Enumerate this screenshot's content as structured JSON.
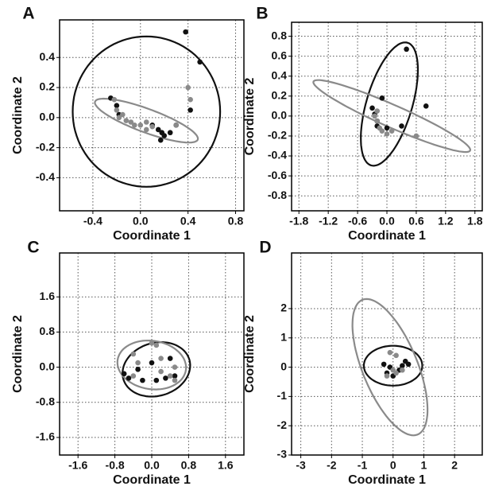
{
  "chart_data": [
    {
      "type": "scatter",
      "panel": "A",
      "x_label": "Coordinate 1",
      "y_label": "Coordinate 2",
      "grid": true,
      "xlim": [
        -0.68,
        0.87
      ],
      "ylim": [
        -0.62,
        0.65
      ],
      "xticks": [
        -0.4,
        {
          "value": 0,
          "label": "0.0"
        },
        0.4,
        0.8
      ],
      "yticks": [
        -0.4,
        -0.2,
        {
          "value": 0,
          "label": "0.0"
        },
        0.2,
        0.4
      ],
      "series": [
        {
          "color": "#111111",
          "x": [
            -0.25,
            -0.2,
            -0.18,
            0.15,
            0.18,
            0.2,
            0.17,
            0.3,
            0.38,
            0.5,
            0.42,
            0.1,
            0.25
          ],
          "y": [
            0.13,
            0.08,
            0.02,
            -0.08,
            -0.1,
            -0.12,
            -0.15,
            -0.05,
            0.57,
            0.37,
            0.05,
            -0.05,
            -0.1
          ],
          "ellipse": {
            "cx": 0.05,
            "cy": 0.04,
            "a": 0.62,
            "b": 0.5,
            "angle": 0
          }
        },
        {
          "color": "#8a8a8a",
          "x": [
            -0.22,
            -0.2,
            -0.15,
            -0.12,
            -0.08,
            -0.05,
            0.0,
            0.05,
            0.1,
            -0.18,
            0.3,
            0.42,
            0.4,
            0.05
          ],
          "y": [
            0.12,
            0.05,
            0.02,
            -0.02,
            -0.03,
            -0.05,
            -0.05,
            -0.08,
            -0.06,
            0.0,
            -0.05,
            0.12,
            0.2,
            -0.03
          ],
          "ellipse": {
            "cx": 0.05,
            "cy": -0.02,
            "a": 0.45,
            "b": 0.08,
            "angle": -16
          }
        }
      ]
    },
    {
      "type": "scatter",
      "panel": "B",
      "x_label": "Coordinate 1",
      "y_label": "Coordinate 2",
      "grid": true,
      "xlim": [
        -1.95,
        1.95
      ],
      "ylim": [
        -0.95,
        0.94
      ],
      "xticks": [
        -1.8,
        -1.2,
        -0.6,
        {
          "value": 0,
          "label": "0.0"
        },
        0.6,
        1.2,
        1.8
      ],
      "yticks": [
        -0.8,
        -0.6,
        -0.4,
        -0.2,
        {
          "value": 0,
          "label": "0.0"
        },
        0.2,
        0.4,
        0.6,
        0.8
      ],
      "series": [
        {
          "color": "#111111",
          "x": [
            0.4,
            0.8,
            -0.1,
            -0.3,
            -0.25,
            -0.2,
            0.3,
            0.0,
            -0.2
          ],
          "y": [
            0.67,
            0.1,
            0.18,
            0.08,
            0.02,
            -0.05,
            -0.1,
            -0.12,
            -0.1
          ],
          "ellipse": {
            "cx": 0.05,
            "cy": 0.12,
            "a": 0.75,
            "b": 0.4,
            "angle": 48
          }
        },
        {
          "color": "#8a8a8a",
          "x": [
            -0.25,
            -0.2,
            -0.15,
            -0.1,
            0.0,
            0.1,
            0.6,
            -0.2
          ],
          "y": [
            0.0,
            -0.05,
            -0.12,
            -0.15,
            -0.18,
            -0.15,
            -0.2,
            0.05
          ],
          "ellipse": {
            "cx": 0.1,
            "cy": 0.0,
            "a": 1.64,
            "b": 0.12,
            "angle": -12
          }
        }
      ]
    },
    {
      "type": "scatter",
      "panel": "C",
      "x_label": "Coordinate 1",
      "y_label": "Coordinate 2",
      "grid": true,
      "xlim": [
        -2.0,
        2.0
      ],
      "ylim": [
        -2.0,
        2.6
      ],
      "xticks": [
        -1.6,
        -0.8,
        {
          "value": 0,
          "label": "0.0"
        },
        0.8,
        1.6
      ],
      "yticks": [
        -1.6,
        -0.8,
        {
          "value": 0,
          "label": "0.0"
        },
        0.8,
        1.6
      ],
      "series": [
        {
          "color": "#111111",
          "x": [
            -0.6,
            -0.5,
            -0.2,
            0.1,
            0.3,
            0.5,
            0.4,
            0.0,
            -0.3
          ],
          "y": [
            -0.15,
            -0.25,
            -0.3,
            -0.3,
            -0.25,
            -0.2,
            0.2,
            0.1,
            -0.05
          ],
          "ellipse": {
            "cx": 0.1,
            "cy": -0.05,
            "a": 0.75,
            "b": 0.6,
            "angle": 20
          }
        },
        {
          "color": "#8a8a8a",
          "x": [
            -0.4,
            -0.3,
            0.0,
            0.1,
            0.2,
            0.4,
            0.5,
            -0.4,
            0.2,
            0.5
          ],
          "y": [
            0.3,
            0.1,
            0.55,
            0.5,
            0.2,
            -0.2,
            -0.3,
            -0.2,
            -0.1,
            0.0
          ],
          "ellipse": {
            "cx": 0.0,
            "cy": 0.05,
            "a": 0.75,
            "b": 0.55,
            "angle": -10
          }
        }
      ]
    },
    {
      "type": "scatter",
      "panel": "D",
      "x_label": "Coordinate 1",
      "y_label": "Coordinate 2",
      "grid": true,
      "xlim": [
        -3.3,
        2.9
      ],
      "ylim": [
        -3.0,
        3.9
      ],
      "xticks": [
        -3,
        -2,
        -1,
        0,
        1,
        2
      ],
      "yticks": [
        -3,
        -2,
        -1,
        0,
        1,
        2
      ],
      "series": [
        {
          "color": "#111111",
          "x": [
            -0.3,
            -0.2,
            0.0,
            0.3,
            0.4,
            0.2,
            -0.1,
            0.5
          ],
          "y": [
            0.1,
            -0.2,
            -0.3,
            0.05,
            0.2,
            -0.1,
            0.0,
            0.1
          ],
          "ellipse": {
            "cx": 0.0,
            "cy": 0.05,
            "a": 0.95,
            "b": 0.68,
            "angle": 0
          }
        },
        {
          "color": "#8a8a8a",
          "x": [
            -0.1,
            0.1,
            -0.2,
            0.1,
            0.3,
            0.0
          ],
          "y": [
            0.5,
            0.4,
            -0.3,
            -0.2,
            -0.1,
            -0.1
          ],
          "ellipse": {
            "cx": -0.1,
            "cy": 0.0,
            "a": 2.47,
            "b": 0.9,
            "angle": -69
          }
        }
      ]
    }
  ]
}
